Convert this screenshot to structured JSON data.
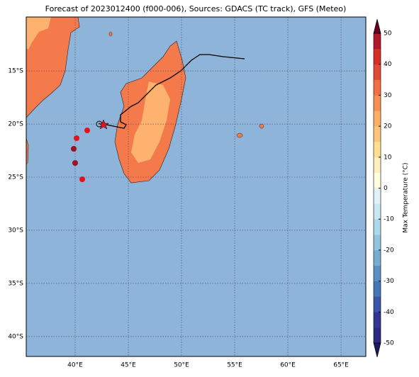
{
  "map": {
    "title": "Forecast of 2023012400 (f000-006), Sources: GDACS (TC track), GFS (Meteo)",
    "xlim": [
      35.4,
      67.33
    ],
    "ylim": [
      -41.87,
      -9.93
    ],
    "xticks": [
      {
        "value": 40,
        "label": "40°E"
      },
      {
        "value": 45,
        "label": "45°E"
      },
      {
        "value": 50,
        "label": "50°E"
      },
      {
        "value": 55,
        "label": "55°E"
      },
      {
        "value": 60,
        "label": "60°E"
      },
      {
        "value": 65,
        "label": "65°E"
      }
    ],
    "yticks": [
      {
        "value": -15,
        "label": "15°S"
      },
      {
        "value": -20,
        "label": "20°S"
      },
      {
        "value": -25,
        "label": "25°S"
      },
      {
        "value": -30,
        "label": "30°S"
      },
      {
        "value": -35,
        "label": "35°S"
      },
      {
        "value": -40,
        "label": "40°S"
      }
    ],
    "grid": true
  },
  "colorbar": {
    "label": "Max Temperature (°C)",
    "lim": [
      -50,
      50
    ],
    "ticks": [
      -50,
      -40,
      -30,
      -20,
      -10,
      0,
      10,
      20,
      30,
      40,
      50
    ],
    "colors": [
      "#2a2a80",
      "#313695",
      "#3b55a8",
      "#4575b4",
      "#5b8fc4",
      "#74add1",
      "#92c5de",
      "#abd9e9",
      "#c9e8f2",
      "#e0f3f8",
      "#ffffe0",
      "#fff0c0",
      "#fee090",
      "#fdc57a",
      "#fdae61",
      "#f88d52",
      "#f46d43",
      "#e34a33",
      "#d73027",
      "#b2182b"
    ]
  }
}
